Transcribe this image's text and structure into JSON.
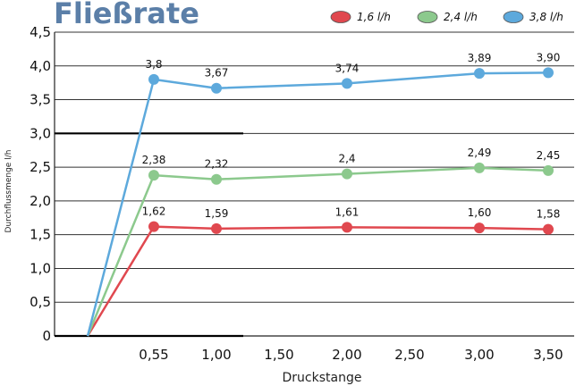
{
  "chart_data": {
    "type": "line",
    "title": "Fließrate",
    "title_color": "#5b7fa8",
    "xlabel": "Druckstange",
    "ylabel": "Durchflussmenge l/h",
    "x_tick_labels": [
      "0,55",
      "1,00",
      "1,50",
      "2,00",
      "2,50",
      "3,00",
      "3,50"
    ],
    "y_tick_labels": [
      "0",
      "0,5",
      "1,0",
      "1,5",
      "2,0",
      "2,5",
      "3,0",
      "3,5",
      "4,0",
      "4,5"
    ],
    "ylim": [
      0,
      4.5
    ],
    "x_origin_category": 0,
    "grid": "horizontal",
    "legend_position": "top-right",
    "series": [
      {
        "name": "1,6 l/h",
        "color": "#e0484f",
        "points": [
          {
            "x": 0.55,
            "y": 1.62,
            "label": "1,62"
          },
          {
            "x": 1.0,
            "y": 1.59,
            "label": "1,59"
          },
          {
            "x": 2.0,
            "y": 1.61,
            "label": "1,61"
          },
          {
            "x": 3.0,
            "y": 1.6,
            "label": "1,60"
          },
          {
            "x": 3.5,
            "y": 1.58,
            "label": "1,58"
          }
        ]
      },
      {
        "name": "2,4 l/h",
        "color": "#8cc98d",
        "points": [
          {
            "x": 0.55,
            "y": 2.38,
            "label": "2,38"
          },
          {
            "x": 1.0,
            "y": 2.32,
            "label": "2,32"
          },
          {
            "x": 2.0,
            "y": 2.4,
            "label": "2,4"
          },
          {
            "x": 3.0,
            "y": 2.49,
            "label": "2,49"
          },
          {
            "x": 3.5,
            "y": 2.45,
            "label": "2,45"
          }
        ]
      },
      {
        "name": "3,8 l/h",
        "color": "#5da9dc",
        "points": [
          {
            "x": 0.55,
            "y": 3.8,
            "label": "3,8"
          },
          {
            "x": 1.0,
            "y": 3.67,
            "label": "3,67"
          },
          {
            "x": 2.0,
            "y": 3.74,
            "label": "3,74"
          },
          {
            "x": 3.0,
            "y": 3.89,
            "label": "3,89"
          },
          {
            "x": 3.5,
            "y": 3.9,
            "label": "3,90"
          }
        ]
      }
    ]
  }
}
